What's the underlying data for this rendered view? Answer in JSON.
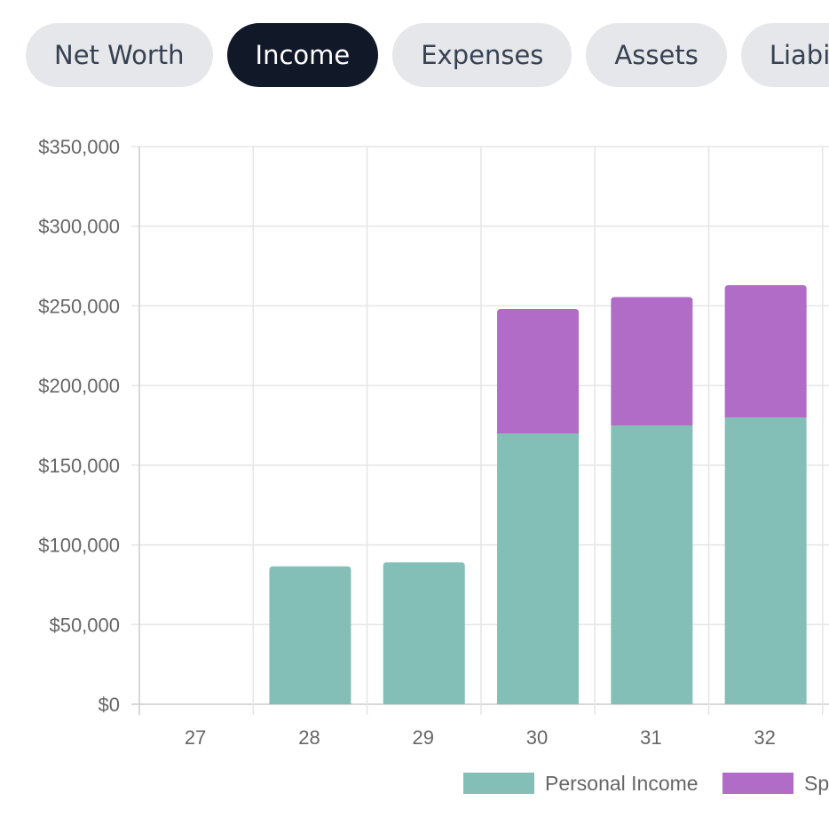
{
  "tabs": [
    {
      "label": "Net Worth",
      "active": false
    },
    {
      "label": "Income",
      "active": true
    },
    {
      "label": "Expenses",
      "active": false
    },
    {
      "label": "Assets",
      "active": false
    },
    {
      "label": "Liabilities",
      "active": false
    }
  ],
  "colors": {
    "tab_bg": "#e5e7eb",
    "tab_active_bg": "#111827",
    "personal_income": "#84bfb7",
    "spouse_income": "#b06cc6",
    "grid": "#e5e5e5",
    "axis_text": "#666666"
  },
  "chart_data": {
    "type": "bar",
    "stacked": true,
    "categories": [
      "27",
      "28",
      "29",
      "30",
      "31",
      "32"
    ],
    "series": [
      {
        "name": "Personal Income",
        "values": [
          0,
          86500,
          89000,
          170000,
          175000,
          180000
        ]
      },
      {
        "name": "Sp",
        "values": [
          0,
          0,
          0,
          78000,
          80500,
          83000
        ]
      }
    ],
    "ylim": [
      0,
      350000
    ],
    "yticks": [
      0,
      50000,
      100000,
      150000,
      200000,
      250000,
      300000,
      350000
    ],
    "ytick_labels": [
      "$0",
      "$50,000",
      "$100,000",
      "$150,000",
      "$200,000",
      "$250,000",
      "$300,000",
      "$350,000"
    ],
    "grid": true,
    "legend_position": "bottom"
  }
}
